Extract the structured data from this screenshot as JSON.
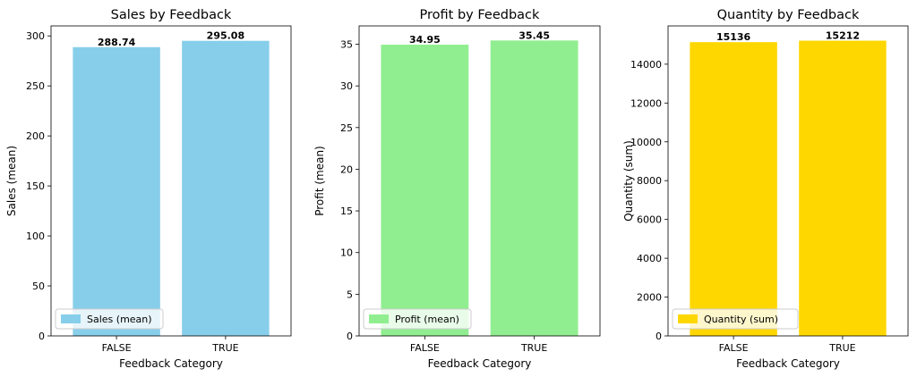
{
  "chart_data": [
    {
      "type": "bar",
      "title": "Sales by Feedback",
      "xlabel": "Feedback Category",
      "ylabel": "Sales (mean)",
      "categories": [
        "FALSE",
        "TRUE"
      ],
      "series": [
        {
          "name": "Sales (mean)",
          "values": [
            288.74,
            295.08
          ]
        }
      ],
      "data_labels": [
        "288.74",
        "295.08"
      ],
      "ylim": [
        0,
        310
      ],
      "yticks": [
        0,
        50,
        100,
        150,
        200,
        250,
        300
      ],
      "color": "#87ceeb",
      "legend_position": "lower-left",
      "grid": false
    },
    {
      "type": "bar",
      "title": "Profit by Feedback",
      "xlabel": "Feedback Category",
      "ylabel": "Profit (mean)",
      "categories": [
        "FALSE",
        "TRUE"
      ],
      "series": [
        {
          "name": "Profit (mean)",
          "values": [
            34.95,
            35.45
          ]
        }
      ],
      "data_labels": [
        "34.95",
        "35.45"
      ],
      "ylim": [
        0,
        37.2
      ],
      "yticks": [
        0,
        5,
        10,
        15,
        20,
        25,
        30,
        35
      ],
      "color": "#90ee90",
      "legend_position": "lower-left",
      "grid": false
    },
    {
      "type": "bar",
      "title": "Quantity by Feedback",
      "xlabel": "Feedback Category",
      "ylabel": "Quantity (sum)",
      "categories": [
        "FALSE",
        "TRUE"
      ],
      "series": [
        {
          "name": "Quantity (sum)",
          "values": [
            15136,
            15212
          ]
        }
      ],
      "data_labels": [
        "15136",
        "15212"
      ],
      "ylim": [
        0,
        15973
      ],
      "yticks": [
        0,
        2000,
        4000,
        6000,
        8000,
        10000,
        12000,
        14000
      ],
      "color": "#ffd700",
      "legend_position": "lower-left",
      "grid": false
    }
  ]
}
